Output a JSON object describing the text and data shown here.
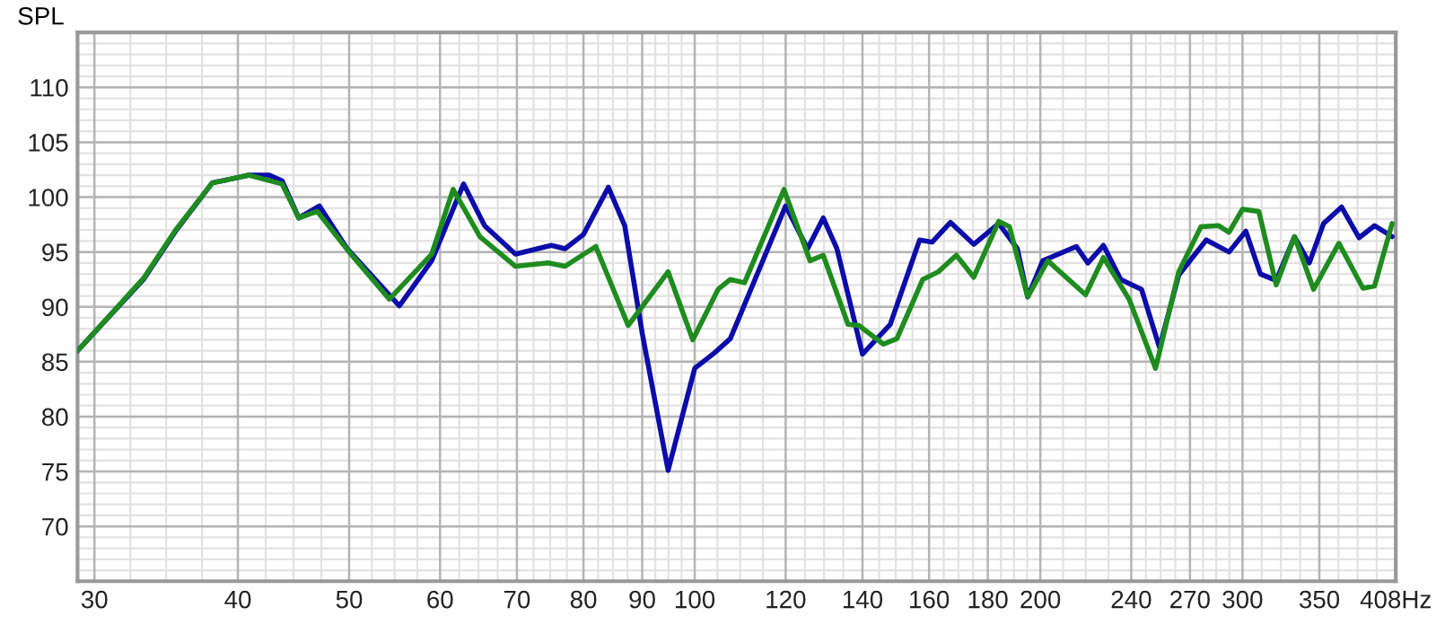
{
  "chart_data": {
    "type": "line",
    "ylabel": "SPL",
    "log": "x",
    "grid": true,
    "marker": "none",
    "line_style": "solid",
    "xlim": [
      29,
      408
    ],
    "ylim": [
      65,
      115
    ],
    "xticks": [
      30,
      40,
      50,
      60,
      70,
      80,
      90,
      100,
      120,
      140,
      160,
      180,
      200,
      240,
      270,
      300,
      350,
      {
        "value": 408,
        "label": "408Hz"
      }
    ],
    "yticks": [
      70,
      75,
      80,
      85,
      90,
      95,
      100,
      105,
      110
    ],
    "series": [
      {
        "color": "#0c0caa",
        "x": [
          29,
          33.1,
          35.3,
          38,
          40.9,
          42.6,
          43.7,
          45.2,
          47.1,
          49.8,
          55.3,
          59,
          62.9,
          65.6,
          69.8,
          75,
          77.1,
          80,
          84.1,
          86.9,
          90,
          94.8,
          100,
          104,
          107.4,
          120,
          125.4,
          129.4,
          133,
          140,
          148,
          157,
          161,
          167,
          175,
          184,
          191,
          195,
          201,
          215,
          220,
          227,
          235,
          245,
          254,
          264,
          279,
          292,
          302,
          311,
          321,
          333,
          343,
          353,
          366,
          379,
          391,
          405
        ],
        "values": [
          86.0,
          92.5,
          96.9,
          101.3,
          102.0,
          102.0,
          101.5,
          98.1,
          99.2,
          95.3,
          90.1,
          94.2,
          101.2,
          97.4,
          94.8,
          95.6,
          95.3,
          96.6,
          100.9,
          97.4,
          87.6,
          75.1,
          84.4,
          85.8,
          87.1,
          99.2,
          95.3,
          98.1,
          95.3,
          85.7,
          88.4,
          96.1,
          95.9,
          97.7,
          95.7,
          97.6,
          95.3,
          90.9,
          94.2,
          95.5,
          94.0,
          95.6,
          92.5,
          91.6,
          86.3,
          92.9,
          96.1,
          95.0,
          96.9,
          93.0,
          92.4,
          96.4,
          94.0,
          97.6,
          99.1,
          96.3,
          97.4,
          96.4
        ]
      },
      {
        "color": "#1e8c1e",
        "x": [
          29,
          33.1,
          35.3,
          38,
          40.9,
          42.6,
          43.7,
          45.2,
          46.9,
          50,
          54.2,
          59,
          61.6,
          65,
          69.8,
          74.5,
          77.1,
          82,
          87.5,
          94.8,
          99.6,
          104.8,
          107.4,
          110.5,
          119.6,
          126,
          129.4,
          136,
          139,
          146,
          150,
          158,
          163,
          169,
          175,
          184,
          188,
          195,
          203,
          219,
          227,
          239,
          252,
          264,
          276,
          286,
          292,
          300,
          310,
          321,
          333,
          346,
          364,
          382,
          391,
          405
        ],
        "values": [
          86.0,
          92.6,
          97.0,
          101.3,
          102.0,
          101.5,
          101.2,
          98.1,
          98.7,
          95.0,
          90.7,
          94.8,
          100.7,
          96.4,
          93.7,
          94.0,
          93.7,
          95.5,
          88.3,
          93.2,
          87.0,
          91.6,
          92.5,
          92.2,
          100.7,
          94.2,
          94.7,
          88.4,
          88.3,
          86.6,
          87.1,
          92.5,
          93.2,
          94.7,
          92.7,
          97.8,
          97.3,
          90.9,
          94.2,
          91.1,
          94.5,
          90.7,
          84.4,
          93.2,
          97.3,
          97.4,
          96.8,
          98.9,
          98.7,
          92.0,
          96.4,
          91.6,
          95.8,
          91.7,
          91.9,
          97.6
        ]
      }
    ]
  }
}
